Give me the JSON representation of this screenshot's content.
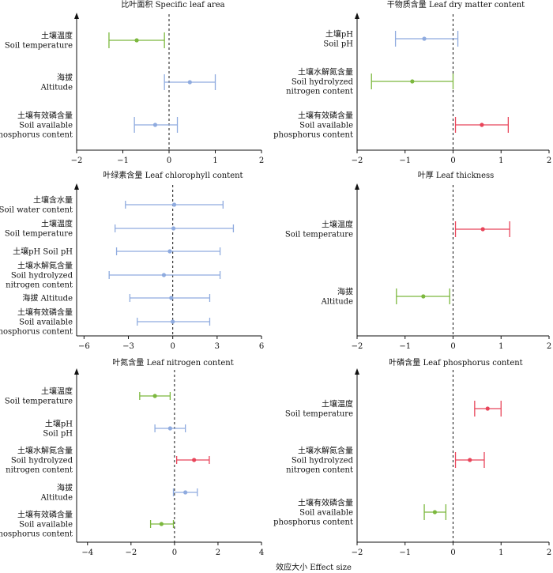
{
  "colors": {
    "green": "#7cb83e",
    "blue": "#8fabdf",
    "red": "#e8455a",
    "black": "#111111"
  },
  "xlabel": "效应大小 Effect size",
  "chart_data": [
    {
      "type": "forest",
      "title": "比叶面积 Specific leaf area",
      "xlim": [
        -2,
        2
      ],
      "xticks": [
        -2,
        -1,
        0,
        1,
        2
      ],
      "ref_line": 0,
      "rows": [
        {
          "label": [
            "土壤温度",
            "Soil temperature"
          ],
          "estimate": -0.7,
          "ci": [
            -1.3,
            -0.1
          ],
          "color": "green"
        },
        {
          "label": [
            "海拔",
            "Altitude"
          ],
          "estimate": 0.45,
          "ci": [
            -0.1,
            1.0
          ],
          "color": "blue"
        },
        {
          "label": [
            "土壤有效磷含量",
            "Soil available",
            "phosphorus content"
          ],
          "estimate": -0.3,
          "ci": [
            -0.75,
            0.18
          ],
          "color": "blue"
        }
      ]
    },
    {
      "type": "forest",
      "title": "干物质含量 Leaf dry matter content",
      "xlim": [
        -2,
        2
      ],
      "xticks": [
        -2,
        -1,
        0,
        1,
        2
      ],
      "ref_line": 0,
      "rows": [
        {
          "label": [
            "土壤pH",
            "Soil pH"
          ],
          "estimate": -0.6,
          "ci": [
            -1.2,
            0.1
          ],
          "color": "blue"
        },
        {
          "label": [
            "土壤水解氮含量",
            "Soil hydrolyzed",
            "nitrogen content"
          ],
          "estimate": -0.85,
          "ci": [
            -1.7,
            0.0
          ],
          "color": "green"
        },
        {
          "label": [
            "土壤有效磷含量",
            "Soil available",
            "phosphorus content"
          ],
          "estimate": 0.6,
          "ci": [
            0.05,
            1.15
          ],
          "color": "red"
        }
      ]
    },
    {
      "type": "forest",
      "title": "叶绿素含量 Leaf chlorophyll content",
      "xlim": [
        -6.5,
        6
      ],
      "xticks": [
        -6,
        -3,
        0,
        3,
        6
      ],
      "ref_line": 0,
      "rows": [
        {
          "label": [
            "土壤含水量",
            "Soil water content"
          ],
          "estimate": 0.1,
          "ci": [
            -3.2,
            3.4
          ],
          "color": "blue"
        },
        {
          "label": [
            "土壤温度",
            "Soil temperature"
          ],
          "estimate": 0.05,
          "ci": [
            -3.9,
            4.1
          ],
          "color": "blue"
        },
        {
          "label": [
            "土壤pH Soil pH"
          ],
          "estimate": -0.2,
          "ci": [
            -3.8,
            3.2
          ],
          "color": "blue"
        },
        {
          "label": [
            "土壤水解氮含量",
            "Soil hydrolyzed",
            "nitrogen content"
          ],
          "estimate": -0.6,
          "ci": [
            -4.3,
            3.2
          ],
          "color": "blue"
        },
        {
          "label": [
            "海拔 Altitude"
          ],
          "estimate": -0.1,
          "ci": [
            -2.9,
            2.5
          ],
          "color": "blue"
        },
        {
          "label": [
            "土壤有效磷含量",
            "Soil available",
            "phosphorus content"
          ],
          "estimate": 0.0,
          "ci": [
            -2.4,
            2.5
          ],
          "color": "blue"
        }
      ]
    },
    {
      "type": "forest",
      "title": "叶厚 Leaf thickness",
      "xlim": [
        -2,
        2
      ],
      "xticks": [
        -2,
        -1,
        0,
        1,
        2
      ],
      "ref_line": 0,
      "rows": [
        {
          "label": [
            "土壤温度",
            "Soil temperature"
          ],
          "estimate": 0.62,
          "ci": [
            0.05,
            1.18
          ],
          "color": "red"
        },
        {
          "label": [
            "海拔",
            "Altitude"
          ],
          "estimate": -0.62,
          "ci": [
            -1.18,
            -0.07
          ],
          "color": "green"
        }
      ]
    },
    {
      "type": "forest",
      "title": "叶氮含量 Leaf nitrogen content",
      "xlim": [
        -4.5,
        4
      ],
      "xticks": [
        -4,
        -2,
        0,
        2,
        4
      ],
      "ref_line": 0,
      "rows": [
        {
          "label": [
            "土壤温度",
            "Soil temperature"
          ],
          "estimate": -0.9,
          "ci": [
            -1.6,
            -0.2
          ],
          "color": "green"
        },
        {
          "label": [
            "土壤pH",
            "Soil pH"
          ],
          "estimate": -0.2,
          "ci": [
            -0.9,
            0.5
          ],
          "color": "blue"
        },
        {
          "label": [
            "土壤水解氮含量",
            "Soil hydrolyzed",
            "nitrogen content"
          ],
          "estimate": 0.9,
          "ci": [
            0.1,
            1.6
          ],
          "color": "red"
        },
        {
          "label": [
            "海拔",
            "Altitude"
          ],
          "estimate": 0.5,
          "ci": [
            -0.05,
            1.05
          ],
          "color": "blue"
        },
        {
          "label": [
            "土壤有效磷含量",
            "Soil available",
            "phosphorus content"
          ],
          "estimate": -0.6,
          "ci": [
            -1.1,
            -0.05
          ],
          "color": "green"
        }
      ]
    },
    {
      "type": "forest",
      "title": "叶磷含量 Leaf phosphorus content",
      "xlim": [
        -2,
        2
      ],
      "xticks": [
        -2,
        -1,
        0,
        1,
        2
      ],
      "ref_line": 0,
      "rows": [
        {
          "label": [
            "土壤温度",
            "Soil temperature"
          ],
          "estimate": 0.72,
          "ci": [
            0.45,
            1.0
          ],
          "color": "red"
        },
        {
          "label": [
            "土壤水解氮含量",
            "Soil hydrolyzed",
            "nitrogen content"
          ],
          "estimate": 0.35,
          "ci": [
            0.05,
            0.65
          ],
          "color": "red"
        },
        {
          "label": [
            "土壤有效磷含量",
            "Soil available",
            "phosphorus content"
          ],
          "estimate": -0.38,
          "ci": [
            -0.6,
            -0.15
          ],
          "color": "green"
        }
      ]
    }
  ]
}
